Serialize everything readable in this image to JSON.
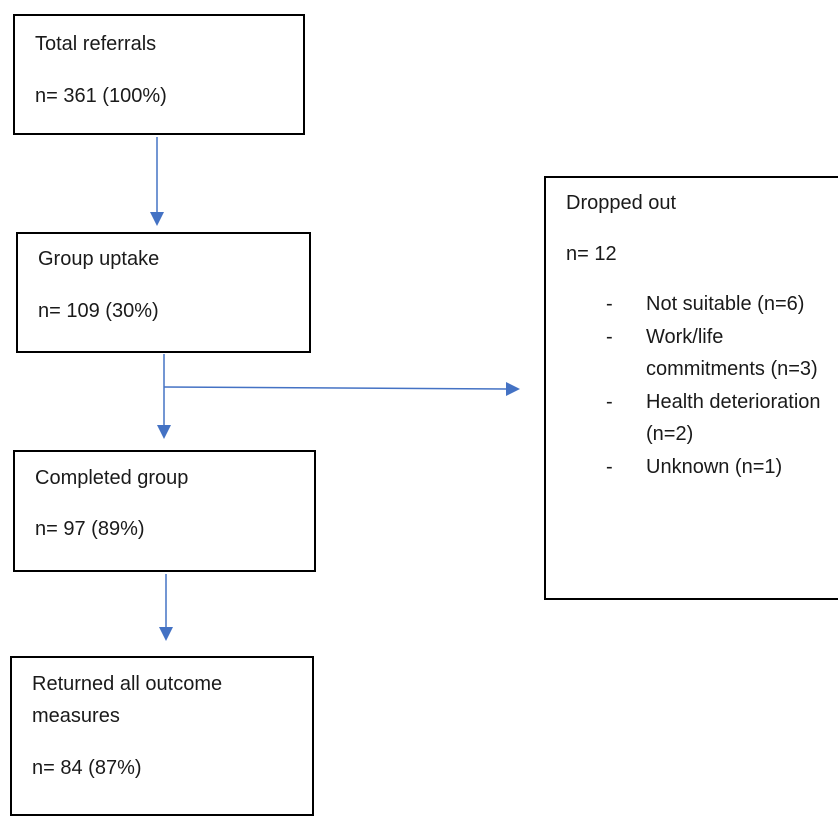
{
  "boxes": {
    "total": {
      "title": "Total referrals",
      "count": "n= 361 (100%)"
    },
    "uptake": {
      "title": "Group uptake",
      "count": "n= 109 (30%)"
    },
    "completed": {
      "title": "Completed group",
      "count": "n= 97 (89%)"
    },
    "returned": {
      "title": "Returned all outcome measures",
      "count": "n= 84 (87%)"
    },
    "dropped": {
      "title": "Dropped out",
      "count": "n= 12",
      "bullet": "-",
      "reasons": [
        "Not suitable (n=6)",
        "Work/life commitments (n=3)",
        "Health deterioration (n=2)",
        "Unknown (n=1)"
      ]
    }
  },
  "colors": {
    "box_border": "#000000",
    "arrow": "#4472c4",
    "text": "#1a1a1a"
  }
}
